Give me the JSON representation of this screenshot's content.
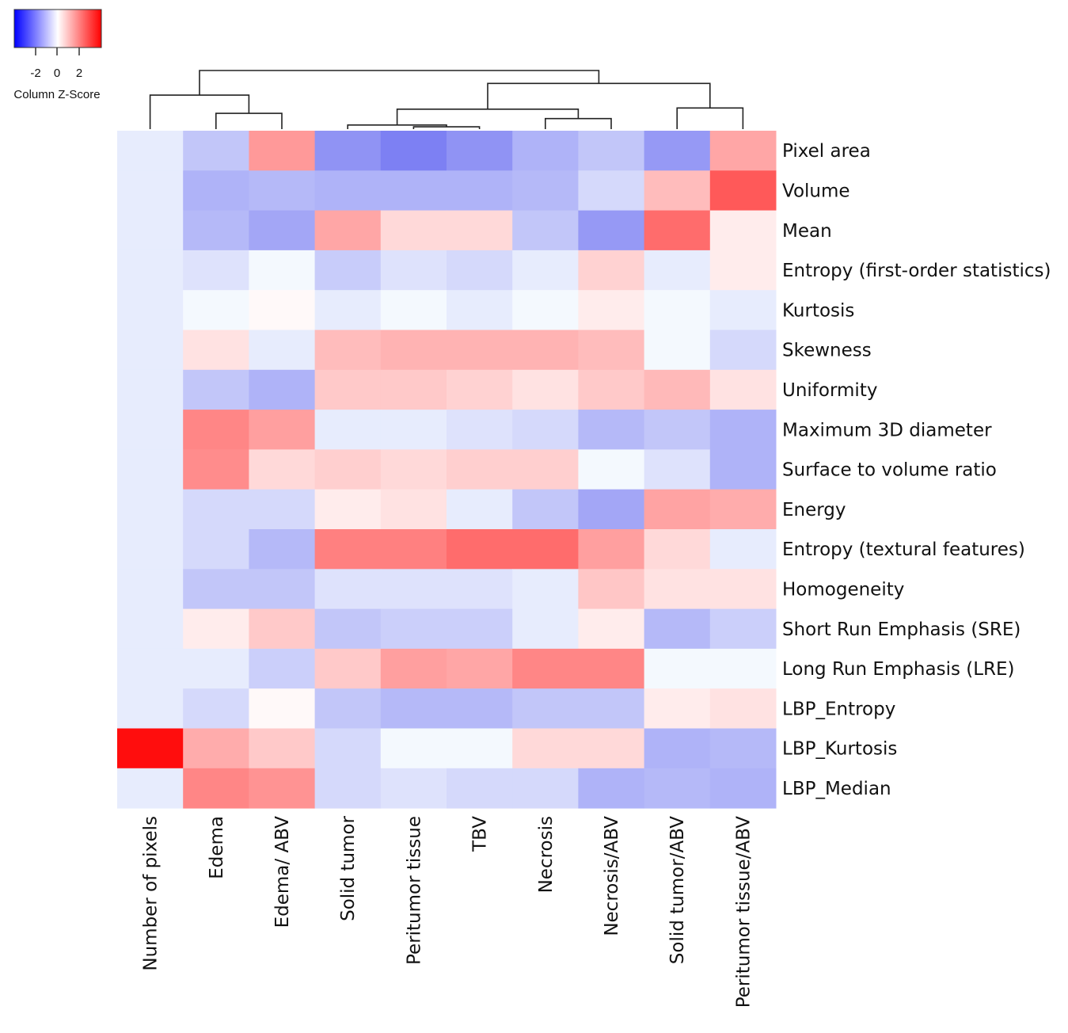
{
  "chart_data": {
    "type": "heatmap",
    "title": "",
    "legend": {
      "title": "Column Z-Score",
      "ticks": [
        "-2",
        "0",
        "2"
      ],
      "range": [
        -4,
        4
      ],
      "low_color": "#0000ff",
      "mid_color": "#ffffff",
      "high_color": "#ff0000",
      "placement": "top-left"
    },
    "columns": [
      "Number of pixels",
      "Edema",
      "Edema/ ABV",
      "Solid tumor",
      "Peritumor tissue",
      "TBV",
      "Necrosis",
      "Necrosis/ABV",
      "Solid tumor/ABV",
      "Peritumor tissue/ABV"
    ],
    "rows": [
      "Pixel area",
      "Volume",
      "Mean",
      "Entropy (first-order statistics)",
      "Kurtosis",
      "Skewness",
      "Uniformity",
      "Maximum 3D diameter",
      "Surface to volume ratio",
      "Energy",
      "Entropy (textural features)",
      "Homogeneity",
      "Short Run Emphasis (SRE)",
      "Long Run Emphasis (LRE)",
      "LBP_Entropy",
      "LBP_Kurtosis",
      "LBP_Median"
    ],
    "values": [
      [
        -0.3,
        -0.9,
        1.6,
        -1.7,
        -2.0,
        -1.7,
        -1.2,
        -0.9,
        -1.6,
        1.4
      ],
      [
        -0.3,
        -1.2,
        -1.1,
        -1.2,
        -1.2,
        -1.2,
        -1.1,
        -0.6,
        1.05,
        2.6
      ],
      [
        -0.3,
        -1.1,
        -1.4,
        1.4,
        0.6,
        0.6,
        -0.9,
        -1.6,
        2.3,
        0.3
      ],
      [
        -0.3,
        -0.45,
        -0.1,
        -0.8,
        -0.45,
        -0.6,
        -0.3,
        0.7,
        -0.3,
        0.3
      ],
      [
        -0.3,
        -0.1,
        0.1,
        -0.3,
        -0.1,
        -0.3,
        -0.1,
        0.3,
        -0.1,
        -0.3
      ],
      [
        -0.3,
        0.45,
        -0.3,
        1.05,
        1.2,
        1.2,
        1.2,
        1.05,
        -0.1,
        -0.6
      ],
      [
        -0.3,
        -0.9,
        -1.2,
        0.85,
        0.85,
        0.7,
        0.45,
        0.85,
        1.1,
        0.45
      ],
      [
        -0.3,
        1.9,
        1.5,
        -0.3,
        -0.3,
        -0.45,
        -0.6,
        -1.1,
        -0.9,
        -1.2
      ],
      [
        -0.3,
        1.8,
        0.6,
        0.75,
        0.6,
        0.75,
        0.75,
        -0.1,
        -0.45,
        -1.2
      ],
      [
        -0.3,
        -0.6,
        -0.6,
        0.3,
        0.45,
        -0.3,
        -0.9,
        -1.4,
        1.45,
        1.3
      ],
      [
        -0.3,
        -0.6,
        -1.1,
        2.0,
        2.0,
        2.3,
        2.3,
        1.5,
        0.6,
        -0.3
      ],
      [
        -0.3,
        -0.9,
        -0.9,
        -0.45,
        -0.45,
        -0.45,
        -0.3,
        0.9,
        0.45,
        0.45
      ],
      [
        -0.3,
        0.3,
        0.85,
        -0.9,
        -0.75,
        -0.75,
        -0.3,
        0.3,
        -1.1,
        -0.75
      ],
      [
        -0.3,
        -0.3,
        -0.75,
        0.85,
        1.5,
        1.4,
        1.9,
        1.9,
        -0.1,
        -0.1
      ],
      [
        -0.3,
        -0.6,
        0.1,
        -0.9,
        -1.1,
        -1.1,
        -0.9,
        -0.9,
        0.3,
        0.45
      ],
      [
        3.8,
        1.3,
        0.85,
        -0.6,
        -0.1,
        -0.1,
        0.6,
        0.6,
        -1.2,
        -1.1
      ],
      [
        -0.3,
        1.9,
        1.7,
        -0.6,
        -0.45,
        -0.6,
        -0.6,
        -1.2,
        -1.1,
        -1.2
      ]
    ],
    "column_dendrogram": [
      {
        "left": 1,
        "right": 2,
        "height": 0.27
      },
      {
        "left": 0,
        "right": "n0",
        "height": 0.58
      },
      {
        "left": 4,
        "right": 5,
        "height": 0.04
      },
      {
        "left": 3,
        "right": "n2",
        "height": 0.07
      },
      {
        "left": 6,
        "right": 7,
        "height": 0.18
      },
      {
        "left": "n3",
        "right": "n4",
        "height": 0.34
      },
      {
        "left": 8,
        "right": 9,
        "height": 0.36
      },
      {
        "left": "n5",
        "right": "n6",
        "height": 0.78
      },
      {
        "left": "n1",
        "right": "n7",
        "height": 1.0
      }
    ]
  }
}
